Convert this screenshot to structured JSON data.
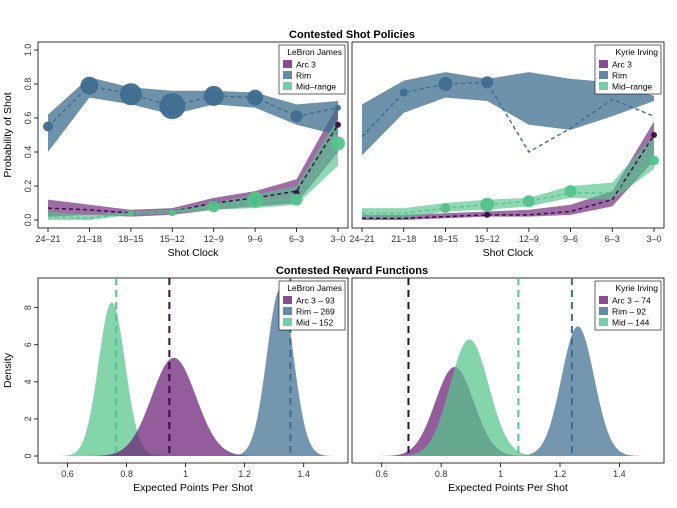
{
  "colors": {
    "arc3": "#6a1f74",
    "rim": "#3f6d8f",
    "mid": "#54c38c"
  },
  "figure": {
    "policy_title": "Contested Shot Policies",
    "reward_title": "Contested Reward Functions"
  },
  "chart_data": [
    {
      "type": "line",
      "id": "policy-lebron",
      "legend_title": "LeBron James",
      "xlabel": "Shot Clock",
      "ylabel": "Probability of Shot",
      "categories": [
        "24–21",
        "21–18",
        "18–15",
        "15–12",
        "12–9",
        "9–6",
        "6–3",
        "3–0"
      ],
      "ylim": [
        0,
        1
      ],
      "yticks": [
        "0.0",
        "0.2",
        "0.4",
        "0.6",
        "0.8",
        "1.0"
      ],
      "legend_position": "top-right",
      "series": [
        {
          "name": "Arc 3",
          "color_key": "arc3",
          "values": [
            0.07,
            0.06,
            0.04,
            0.05,
            0.1,
            0.13,
            0.17,
            0.56
          ],
          "lower": [
            0.02,
            0.03,
            0.02,
            0.03,
            0.06,
            0.08,
            0.1,
            0.4
          ],
          "upper": [
            0.12,
            0.09,
            0.06,
            0.07,
            0.13,
            0.17,
            0.24,
            0.68
          ],
          "point_values": [
            null,
            null,
            null,
            null,
            0.1,
            0.11,
            0.16,
            0.56
          ],
          "sizes": [
            0,
            0,
            0,
            0,
            3,
            3,
            3,
            3
          ]
        },
        {
          "name": "Rim",
          "color_key": "rim",
          "values": [
            0.55,
            0.79,
            0.74,
            0.67,
            0.73,
            0.72,
            0.61,
            0.66
          ],
          "lower": [
            0.4,
            0.72,
            0.68,
            0.62,
            0.68,
            0.66,
            0.56,
            0.5
          ],
          "upper": [
            0.62,
            0.84,
            0.78,
            0.76,
            0.76,
            0.75,
            0.68,
            0.7
          ],
          "point_values": [
            0.55,
            0.79,
            0.74,
            0.67,
            0.73,
            0.72,
            0.61,
            0.66
          ],
          "sizes": [
            5,
            9,
            11,
            13,
            10,
            8,
            6,
            3
          ]
        },
        {
          "name": "Mid–range",
          "color_key": "mid",
          "values": [
            0.02,
            0.01,
            0.04,
            0.05,
            0.08,
            0.11,
            0.12,
            0.45
          ],
          "lower": [
            0.0,
            0.0,
            0.03,
            0.04,
            0.06,
            0.07,
            0.09,
            0.32
          ],
          "upper": [
            0.05,
            0.03,
            0.05,
            0.06,
            0.1,
            0.15,
            0.2,
            0.6
          ],
          "point_values": [
            null,
            null,
            0.04,
            0.04,
            0.08,
            0.12,
            0.12,
            0.45
          ],
          "sizes": [
            0,
            0,
            3,
            3,
            6,
            8,
            6,
            7
          ]
        }
      ]
    },
    {
      "type": "line",
      "id": "policy-kyrie",
      "legend_title": "Kyrie Irving",
      "xlabel": "Shot Clock",
      "ylabel": "",
      "categories": [
        "24–21",
        "21–18",
        "18–15",
        "15–12",
        "12–9",
        "9–6",
        "6–3",
        "3–0"
      ],
      "ylim": [
        0,
        1
      ],
      "legend_position": "top-right",
      "series": [
        {
          "name": "Arc 3",
          "color_key": "arc3",
          "values": [
            0.01,
            0.01,
            0.02,
            0.03,
            0.03,
            0.05,
            0.12,
            0.5
          ],
          "lower": [
            0.0,
            0.0,
            0.01,
            0.02,
            0.02,
            0.03,
            0.08,
            0.35
          ],
          "upper": [
            0.03,
            0.03,
            0.04,
            0.05,
            0.06,
            0.09,
            0.17,
            0.58
          ],
          "point_values": [
            null,
            null,
            null,
            0.03,
            null,
            null,
            null,
            0.5
          ],
          "sizes": [
            0,
            0,
            0,
            3,
            0,
            0,
            0,
            3
          ]
        },
        {
          "name": "Rim",
          "color_key": "rim",
          "values": [
            0.49,
            0.75,
            0.8,
            0.81,
            0.4,
            0.54,
            0.71,
            0.61
          ],
          "lower": [
            0.38,
            0.63,
            0.72,
            0.7,
            0.56,
            0.53,
            0.61,
            0.7
          ],
          "upper": [
            0.68,
            0.82,
            0.87,
            0.83,
            0.87,
            0.83,
            0.81,
            0.73
          ],
          "point_values": [
            null,
            0.75,
            0.8,
            0.81,
            null,
            null,
            null,
            null
          ],
          "sizes": [
            0,
            4,
            7,
            6,
            0,
            0,
            0,
            0
          ]
        },
        {
          "name": "Mid–range",
          "color_key": "mid",
          "values": [
            0.04,
            0.04,
            0.07,
            0.09,
            0.11,
            0.16,
            0.16,
            0.36
          ],
          "lower": [
            0.01,
            0.01,
            0.05,
            0.06,
            0.08,
            0.13,
            0.12,
            0.3
          ],
          "upper": [
            0.07,
            0.07,
            0.1,
            0.12,
            0.13,
            0.2,
            0.22,
            0.5
          ],
          "point_values": [
            null,
            null,
            0.07,
            0.09,
            0.11,
            0.17,
            null,
            0.35
          ],
          "sizes": [
            0,
            0,
            5,
            7,
            6,
            6,
            0,
            5
          ]
        }
      ]
    },
    {
      "type": "area",
      "id": "reward-lebron",
      "legend_title": "LeBron James",
      "xlabel": "Expected Points Per Shot",
      "ylabel": "Density",
      "xlim": [
        0.5,
        1.55
      ],
      "xticks": [
        0.6,
        0.8,
        1.0,
        1.2,
        1.4
      ],
      "ylim": [
        0,
        9.6
      ],
      "yticks": [
        0,
        2,
        4,
        6,
        8
      ],
      "legend_position": "top-right",
      "series": [
        {
          "name": "Mid – 152",
          "color_key": "mid",
          "mean": 0.75,
          "sd": 0.045,
          "peak": 8.3,
          "dashed_at": 0.765
        },
        {
          "name": "Arc 3 – 93",
          "color_key": "arc3",
          "mean": 0.96,
          "sd": 0.075,
          "peak": 5.3,
          "dashed_at": 0.945
        },
        {
          "name": "Rim – 269",
          "color_key": "rim",
          "mean": 1.32,
          "sd": 0.045,
          "peak": 9.0,
          "dashed_at": 1.355
        }
      ]
    },
    {
      "type": "area",
      "id": "reward-kyrie",
      "legend_title": "Kyrie Irving",
      "xlabel": "Expected Points Per Shot",
      "ylabel": "",
      "xlim": [
        0.5,
        1.55
      ],
      "xticks": [
        0.6,
        0.8,
        1.0,
        1.2,
        1.4
      ],
      "ylim": [
        0,
        9.6
      ],
      "legend_position": "top-right",
      "series": [
        {
          "name": "Arc 3 – 74",
          "color_key": "arc3",
          "mean": 0.845,
          "sd": 0.065,
          "peak": 4.8,
          "dashed_at": 0.69
        },
        {
          "name": "Rim – 92",
          "color_key": "rim",
          "mean": 1.26,
          "sd": 0.055,
          "peak": 7.0,
          "dashed_at": 1.24
        },
        {
          "name": "Mid – 144",
          "color_key": "mid",
          "mean": 0.895,
          "sd": 0.065,
          "peak": 6.3,
          "dashed_at": 1.06
        }
      ]
    }
  ]
}
